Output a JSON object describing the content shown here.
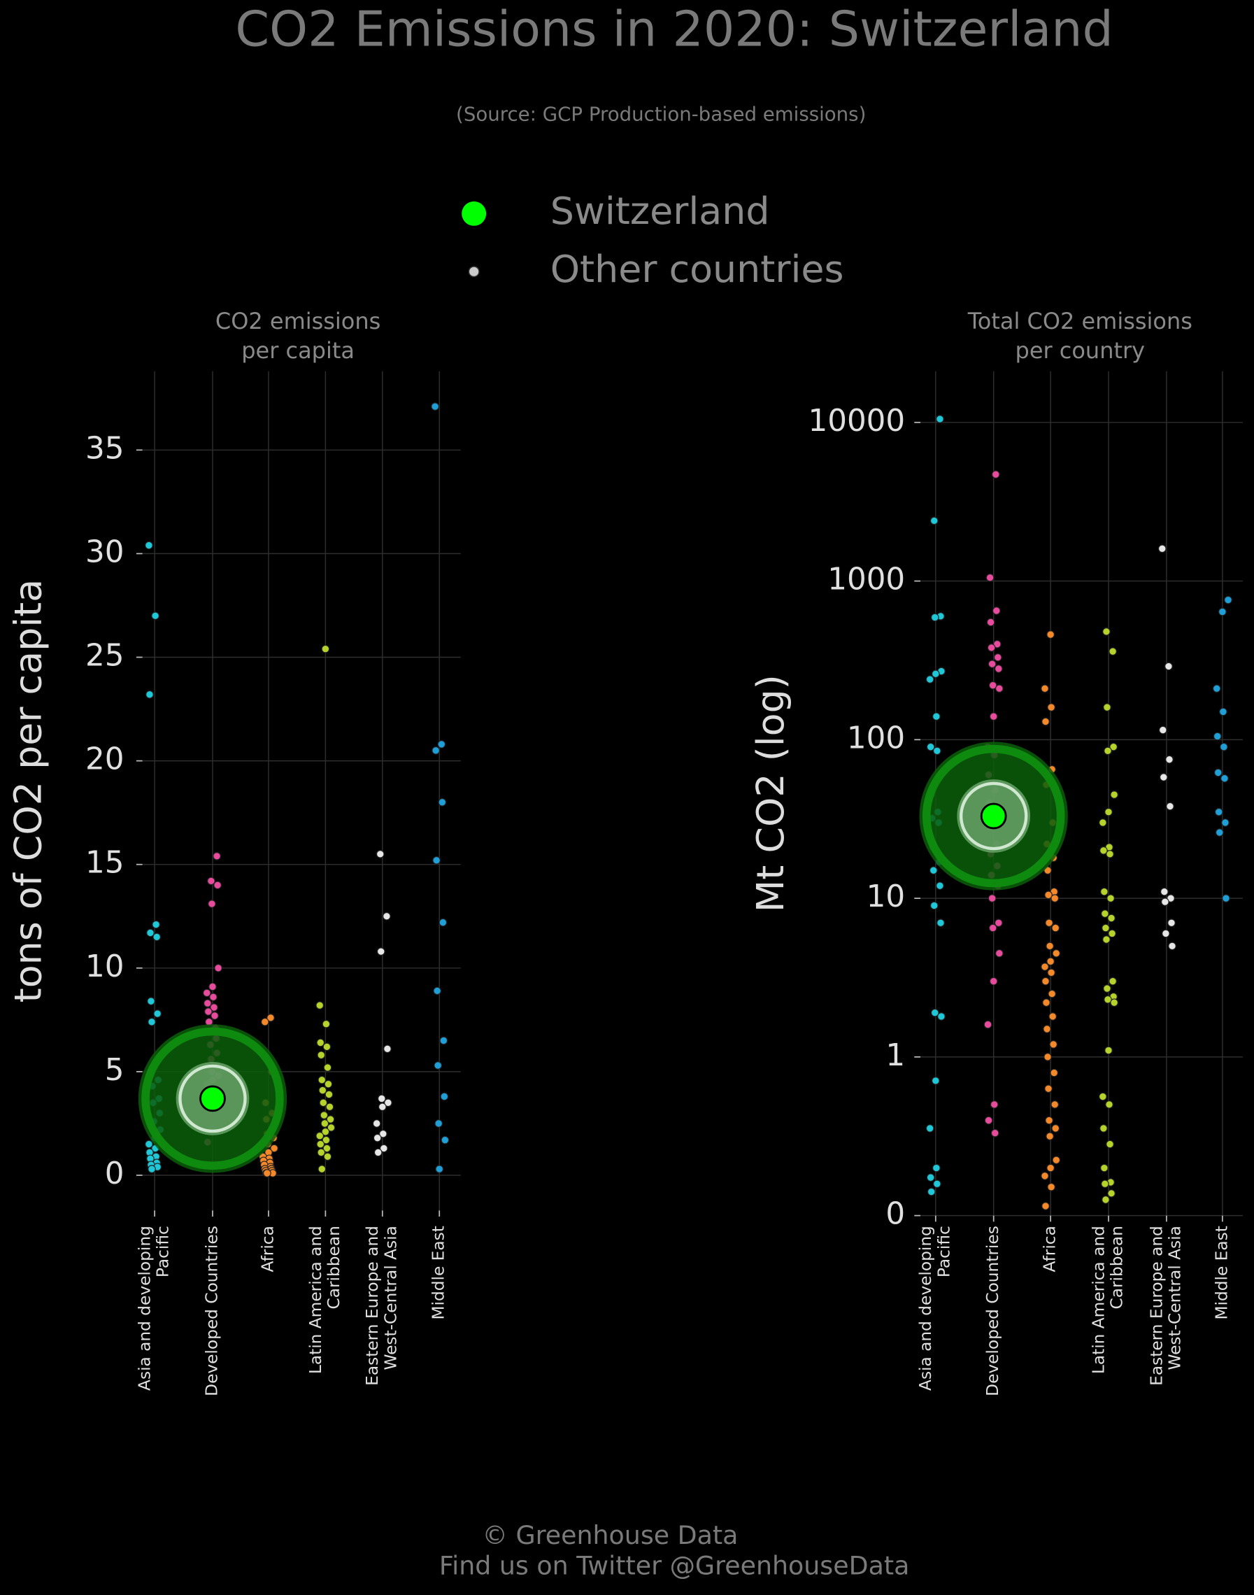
{
  "title": "CO2 Emissions in 2020: Switzerland",
  "subtitle": "(Source: GCP Production-based emissions)",
  "footer": [
    "© Greenhouse Data",
    "Find us on Twitter @GreenhouseData"
  ],
  "chart_data": [
    {
      "type": "strip",
      "title": [
        "CO2 emissions",
        "per capita"
      ],
      "y_label": "tons of CO2 per capita",
      "categories": [
        [
          "Asia and developing",
          "Pacific"
        ],
        [
          "Developed Countries"
        ],
        [
          "Africa"
        ],
        [
          "Latin America and",
          "Caribbean"
        ],
        [
          "Eastern Europe and",
          "West-Central Asia"
        ],
        [
          "Middle East"
        ]
      ],
      "category_colors": [
        "#1ec8d8",
        "#e84a9c",
        "#f5892a",
        "#b5d32a",
        "#e6e6e6",
        "#1f9fd8"
      ],
      "series": [
        {
          "name": "Switzerland",
          "color": "#00ff00",
          "values": [
            null,
            3.7,
            null,
            null,
            null,
            null
          ]
        },
        {
          "name": "Other countries",
          "color": "#cccccc",
          "values": [
            [
              30.4,
              27.0,
              23.2,
              12.1,
              11.7,
              11.5,
              8.4,
              7.8,
              7.4,
              4.6,
              4.3,
              3.7,
              3.5,
              3.0,
              2.6,
              2.2,
              1.8,
              1.5,
              1.3,
              1.1,
              0.9,
              0.8,
              0.6,
              0.5,
              0.4,
              0.3
            ],
            [
              15.4,
              14.2,
              14.0,
              13.1,
              10.0,
              9.1,
              8.8,
              8.6,
              8.3,
              8.1,
              7.9,
              7.7,
              7.4,
              7.1,
              6.9,
              6.6,
              6.3,
              5.9,
              5.6,
              5.3,
              5.0,
              4.8,
              4.6,
              4.4,
              4.1,
              1.6
            ],
            [
              7.6,
              7.4,
              5.0,
              3.5,
              3.0,
              2.7,
              2.3,
              2.0,
              1.8,
              1.5,
              1.3,
              1.1,
              0.9,
              0.8,
              0.7,
              0.6,
              0.5,
              0.4,
              0.3,
              0.3,
              0.2,
              0.2,
              0.1,
              0.1,
              0.1
            ],
            [
              25.4,
              8.2,
              7.3,
              6.4,
              6.2,
              5.8,
              5.2,
              4.6,
              4.4,
              4.1,
              3.9,
              3.5,
              3.3,
              2.9,
              2.7,
              2.5,
              2.3,
              2.1,
              1.9,
              1.7,
              1.5,
              1.3,
              1.1,
              0.9,
              0.3
            ],
            [
              15.5,
              12.5,
              10.8,
              6.1,
              3.7,
              3.5,
              3.3,
              2.5,
              2.0,
              1.8,
              1.3,
              1.1
            ],
            [
              37.1,
              20.8,
              20.5,
              18.0,
              15.2,
              12.2,
              8.9,
              6.5,
              5.3,
              3.8,
              2.5,
              1.7,
              0.3
            ]
          ]
        }
      ],
      "ylim": [
        -1.7,
        38.8
      ],
      "yticks": [
        0,
        5,
        10,
        15,
        20,
        25,
        30,
        35
      ],
      "grid": true
    },
    {
      "type": "strip",
      "title": [
        "Total CO2 emissions",
        "per country"
      ],
      "y_label": "Mt CO2 (log)",
      "y_scale": "symlog",
      "categories": [
        [
          "Asia and developing",
          "Pacific"
        ],
        [
          "Developed Countries"
        ],
        [
          "Africa"
        ],
        [
          "Latin America and",
          "Caribbean"
        ],
        [
          "Eastern Europe and",
          "West-Central Asia"
        ],
        [
          "Middle East"
        ]
      ],
      "category_colors": [
        "#1ec8d8",
        "#e84a9c",
        "#f5892a",
        "#b5d32a",
        "#e6e6e6",
        "#1f9fd8"
      ],
      "series": [
        {
          "color": "#00ff00",
          "values": [
            null,
            33,
            null,
            null,
            null,
            null
          ]
        },
        {
          "color": "#cccccc",
          "values": [
            [
              10500,
              2400,
              600,
              590,
              270,
              260,
              240,
              140,
              90,
              85,
              45,
              35,
              32,
              30,
              21,
              17,
              15,
              12,
              9,
              7,
              1.9,
              1.8,
              0.85,
              0.55,
              0.3,
              0.24,
              0.2,
              0.15
            ],
            [
              4700,
              1050,
              650,
              550,
              400,
              380,
              330,
              300,
              280,
              220,
              210,
              140,
              90,
              80,
              60,
              48,
              40,
              35,
              28,
              22,
              19,
              16,
              14,
              12,
              10,
              7,
              6.5,
              4.5,
              3,
              1.6,
              0.7,
              0.6,
              0.52
            ],
            [
              460,
              210,
              160,
              130,
              65,
              52,
              30,
              22,
              18,
              15,
              11,
              10.5,
              10,
              7,
              6.5,
              5,
              4.5,
              4,
              3.7,
              3.4,
              3,
              2.5,
              2.2,
              1.8,
              1.5,
              1.2,
              1,
              0.9,
              0.8,
              0.7,
              0.6,
              0.55,
              0.5,
              0.35,
              0.3,
              0.25,
              0.18,
              0.06
            ],
            [
              480,
              360,
              160,
              90,
              85,
              45,
              35,
              30,
              21,
              20,
              19,
              11,
              10,
              8,
              7.5,
              6.5,
              6,
              5.5,
              3,
              2.7,
              2.4,
              2.3,
              2.2,
              1.1,
              0.75,
              0.7,
              0.55,
              0.45,
              0.3,
              0.21,
              0.2,
              0.14,
              0.1
            ],
            [
              1600,
              290,
              115,
              75,
              58,
              38,
              11,
              10,
              9.5,
              7,
              6,
              5
            ],
            [
              760,
              640,
              210,
              150,
              105,
              90,
              62,
              57,
              35,
              30,
              26,
              10
            ]
          ]
        }
      ],
      "ylim": [
        0,
        21000
      ],
      "yticks": [
        0,
        1,
        10,
        100,
        1000,
        10000
      ],
      "grid": true
    }
  ]
}
